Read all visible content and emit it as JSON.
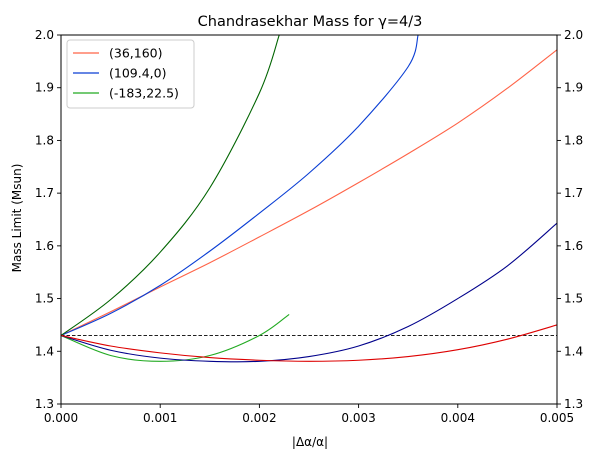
{
  "chart_data": {
    "type": "line",
    "title": "Chandrasekhar Mass for γ=4/3",
    "xlabel": "|Δα/α|",
    "ylabel": "Mass Limit (Msun)",
    "xlim": [
      0.0,
      0.005
    ],
    "ylim": [
      1.3,
      2.0
    ],
    "xticks": [
      "0.000",
      "0.001",
      "0.002",
      "0.003",
      "0.004",
      "0.005"
    ],
    "yticks": [
      "1.3",
      "1.4",
      "1.5",
      "1.6",
      "1.7",
      "1.8",
      "1.9",
      "2.0"
    ],
    "right_yticks": [
      "1.3",
      "1.4",
      "1.5",
      "1.6",
      "1.7",
      "1.8",
      "1.9",
      "2.0"
    ],
    "grid": false,
    "legend_position": "top-left",
    "reference_line": {
      "y": 1.43,
      "style": "dashed",
      "color": "#000000"
    },
    "series": [
      {
        "name": "(36,160)",
        "color": "#ff6347",
        "x": [
          0.0,
          0.0005,
          0.001,
          0.0015,
          0.002,
          0.0025,
          0.003,
          0.0035,
          0.004,
          0.0045,
          0.005
        ],
        "y": [
          1.43,
          1.475,
          1.522,
          1.568,
          1.617,
          1.667,
          1.72,
          1.775,
          1.833,
          1.899,
          1.972
        ]
      },
      {
        "name": "(109.4,0)",
        "color": "#0a3ed4",
        "x": [
          0.0,
          0.0005,
          0.001,
          0.0015,
          0.002,
          0.0025,
          0.003,
          0.0035,
          0.0036
        ],
        "y": [
          1.43,
          1.472,
          1.525,
          1.59,
          1.662,
          1.738,
          1.827,
          1.94,
          2.0
        ]
      },
      {
        "name": "(-183,22.5)",
        "color": "#22aa22",
        "x": [
          0.0,
          0.0005,
          0.001,
          0.0015,
          0.002,
          0.0023
        ],
        "y": [
          1.43,
          1.392,
          1.381,
          1.392,
          1.43,
          1.47
        ]
      },
      {
        "color": "#006400",
        "x": [
          0.0,
          0.0005,
          0.001,
          0.0015,
          0.002,
          0.0022
        ],
        "y": [
          1.43,
          1.498,
          1.588,
          1.71,
          1.89,
          2.0
        ]
      },
      {
        "color": "#00008b",
        "x": [
          0.0,
          0.0005,
          0.001,
          0.0015,
          0.002,
          0.0025,
          0.003,
          0.0035,
          0.004,
          0.0045,
          0.005
        ],
        "y": [
          1.43,
          1.402,
          1.387,
          1.381,
          1.381,
          1.39,
          1.41,
          1.447,
          1.5,
          1.562,
          1.643
        ]
      },
      {
        "color": "#dd0000",
        "x": [
          0.0,
          0.0005,
          0.001,
          0.0015,
          0.002,
          0.0025,
          0.003,
          0.0035,
          0.004,
          0.0045,
          0.005
        ],
        "y": [
          1.43,
          1.41,
          1.397,
          1.388,
          1.383,
          1.381,
          1.383,
          1.39,
          1.403,
          1.423,
          1.45
        ]
      }
    ]
  }
}
